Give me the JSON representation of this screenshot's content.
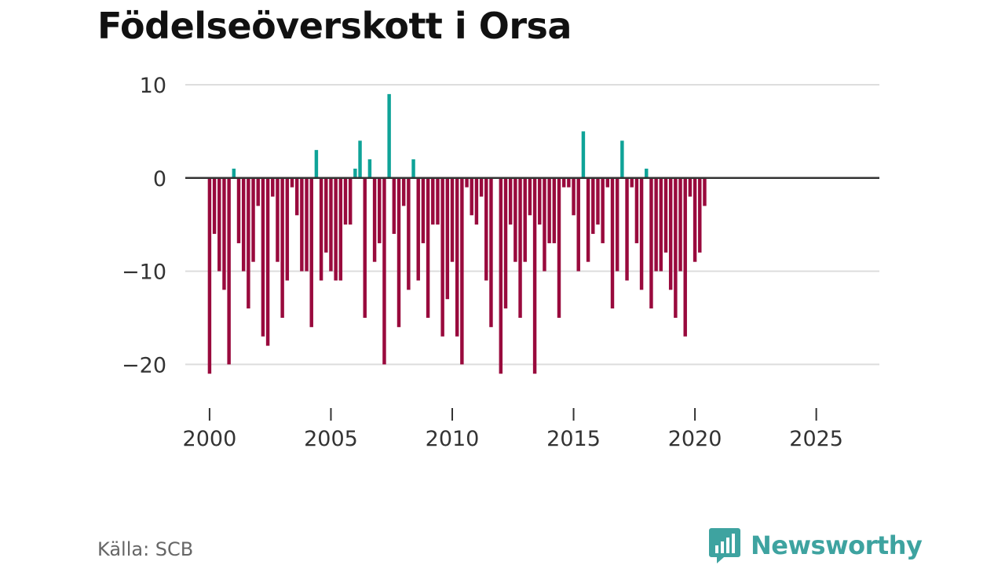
{
  "title": "Födelseöverskott i Orsa",
  "source": "Källa: SCB",
  "brand": {
    "name": "Newsworthy",
    "icon": "newsworthy-logo-icon",
    "color": "#3ea3a0"
  },
  "colors": {
    "positive": "#0fa398",
    "negative": "#990a3d",
    "zero_line": "#333333",
    "grid": "#dddddd"
  },
  "chart_data": {
    "type": "bar",
    "title": "Födelseöverskott i Orsa",
    "xlabel": "",
    "ylabel": "",
    "frequency": "monthly",
    "x_start": 2000.0,
    "x_step": 0.2,
    "xlim": [
      1999.0,
      2027.6
    ],
    "ylim": [
      -23,
      10
    ],
    "y_ticks": [
      10,
      0,
      -10,
      -20
    ],
    "y_tick_labels": [
      "10",
      "0",
      "−10",
      "−20"
    ],
    "x_ticks": [
      2000,
      2005,
      2010,
      2015,
      2020,
      2025
    ],
    "x_tick_labels": [
      "2000",
      "2005",
      "2010",
      "2015",
      "2020",
      "2025"
    ],
    "values": [
      -21,
      -6,
      -10,
      -12,
      -20,
      1,
      -7,
      -10,
      -14,
      -9,
      -3,
      -17,
      -18,
      -2,
      -9,
      -15,
      -11,
      -1,
      -4,
      -10,
      -10,
      -16,
      3,
      -11,
      -8,
      -10,
      -11,
      -11,
      -5,
      -5,
      1,
      4,
      -15,
      2,
      -9,
      -7,
      -20,
      9,
      -6,
      -16,
      -3,
      -12,
      2,
      -11,
      -7,
      -15,
      -5,
      -5,
      -17,
      -13,
      -9,
      -17,
      -20,
      -1,
      -4,
      -5,
      -2,
      -11,
      -16,
      0,
      -21,
      -14,
      -5,
      -9,
      -15,
      -9,
      -4,
      -21,
      -5,
      -10,
      -7,
      -7,
      -15,
      -1,
      -1,
      -4,
      -10,
      5,
      -9,
      -6,
      -5,
      -7,
      -1,
      -14,
      -10,
      4,
      -11,
      -1,
      -7,
      -12,
      1,
      -14,
      -10,
      -10,
      -8,
      -12,
      -15,
      -10,
      -17,
      -2,
      -9,
      -8,
      -3
    ]
  }
}
